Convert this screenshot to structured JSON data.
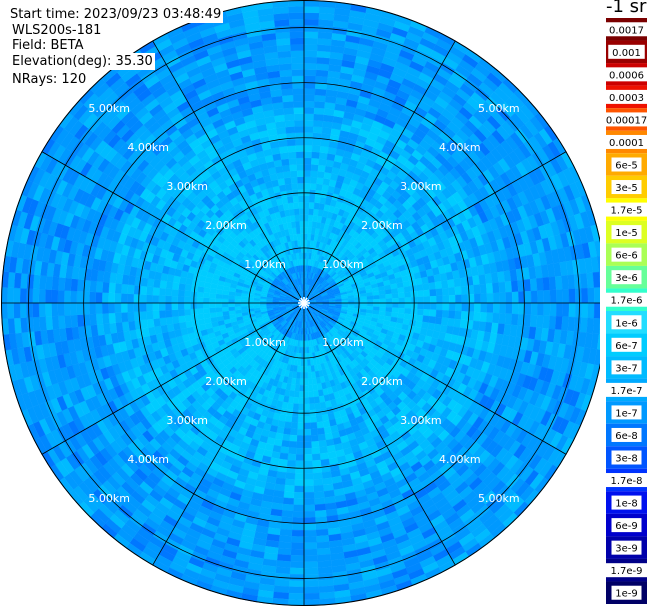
{
  "header": {
    "start_time": "Start time: 2023/09/23 03:48:49",
    "instrument": "WLS200s-181",
    "field": "Field: BETA",
    "elevation": "Elevation(deg): 35.30",
    "nrays": "NRays: 120"
  },
  "colorbar": {
    "title": "-1 sr",
    "labels": [
      "0.0017",
      "0.001",
      "0.0006",
      "0.0003",
      "0.00017",
      "0.0001",
      "6e-5",
      "3e-5",
      "1.7e-5",
      "1e-5",
      "6e-6",
      "3e-6",
      "1.7e-6",
      "1e-6",
      "6e-7",
      "3e-7",
      "1.7e-7",
      "1e-7",
      "6e-8",
      "3e-8",
      "1.7e-8",
      "1e-8",
      "6e-9",
      "3e-9",
      "1.7e-9",
      "1e-9"
    ],
    "colors": [
      "#7a0000",
      "#990000",
      "#cc0000",
      "#ee1100",
      "#ff5500",
      "#ff8800",
      "#ffaa00",
      "#ffcc00",
      "#ffff00",
      "#ddff22",
      "#aaff55",
      "#66ff99",
      "#33ffcc",
      "#22ddff",
      "#00ccff",
      "#00bbff",
      "#00aaff",
      "#0099ff",
      "#0077ff",
      "#0055ff",
      "#0033ff",
      "#0011ee",
      "#0000cc",
      "#0000aa",
      "#000088",
      "#000066"
    ]
  },
  "chart_data": {
    "type": "heatmap",
    "projection": "polar",
    "max_range_km": 5.5,
    "range_rings_km": [
      1,
      2,
      3,
      4,
      5
    ],
    "ring_labels": [
      "1.00km",
      "2.00km",
      "3.00km",
      "4.00km",
      "5.00km"
    ],
    "radial_lines_deg": [
      0,
      30,
      60,
      90,
      120,
      150,
      180,
      210,
      240,
      270,
      300,
      330
    ],
    "nrays": 120,
    "dominant_colors": [
      "#00ccff",
      "#00bbff",
      "#00aaff",
      "#0099ff",
      "#0088ff",
      "#0077ff"
    ]
  }
}
